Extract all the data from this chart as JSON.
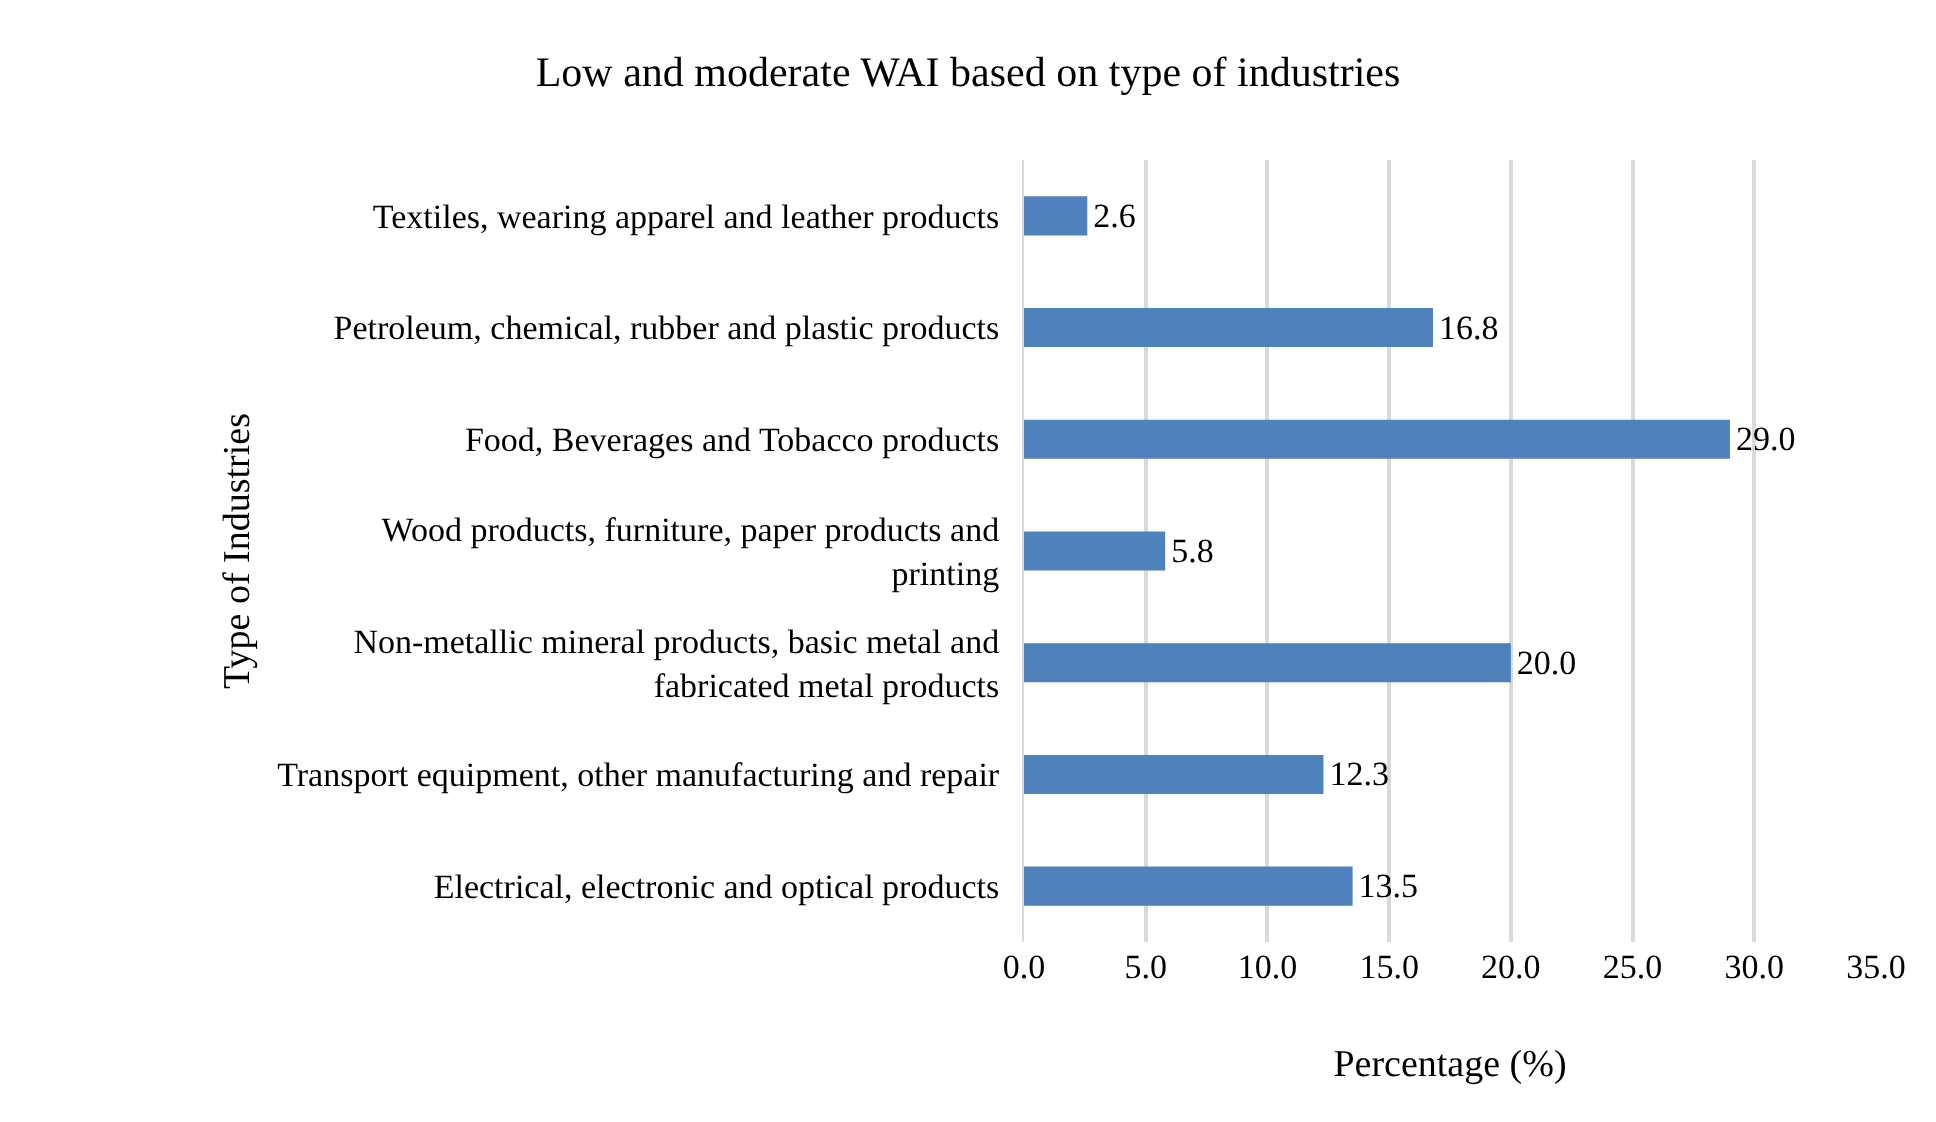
{
  "chart_data": {
    "type": "bar",
    "orientation": "horizontal",
    "title": "Low and moderate WAI based on type of industries",
    "xlabel": "Percentage (%)",
    "ylabel": "Type of Industries",
    "categories": [
      "Textiles, wearing apparel and leather products",
      "Petroleum, chemical, rubber and plastic products",
      "Food, Beverages and Tobacco products",
      "Wood products, furniture, paper products and printing",
      "Non-metallic mineral products, basic metal and fabricated metal products",
      "Transport equipment, other manufacturing and repair",
      "Electrical, electronic and optical products"
    ],
    "values": [
      2.6,
      16.8,
      29.0,
      5.8,
      20.0,
      12.3,
      13.5
    ],
    "value_labels": [
      "2.6",
      "16.8",
      "29.0",
      "5.8",
      "20.0",
      "12.3",
      "13.5"
    ],
    "color": "#4f81bd",
    "xlim": [
      0,
      35
    ],
    "xticks": [
      {
        "value": 0,
        "label": "0.0"
      },
      {
        "value": 5,
        "label": "5.0"
      },
      {
        "value": 10,
        "label": "10.0"
      },
      {
        "value": 15,
        "label": "15.0"
      },
      {
        "value": 20,
        "label": "20.0"
      },
      {
        "value": 25,
        "label": "25.0"
      },
      {
        "value": 30,
        "label": "30.0"
      },
      {
        "value": 35,
        "label": "35.0"
      }
    ],
    "grid": "x"
  }
}
